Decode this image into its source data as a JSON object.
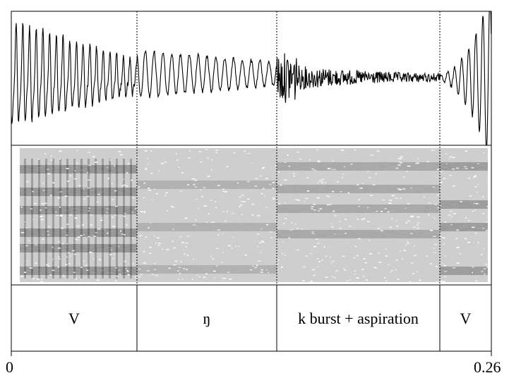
{
  "time_axis": {
    "start": "0",
    "end": "0.26"
  },
  "segments": [
    {
      "label": "V"
    },
    {
      "label": "ŋ"
    },
    {
      "label": "k burst + aspiration"
    },
    {
      "label": "V"
    }
  ]
}
